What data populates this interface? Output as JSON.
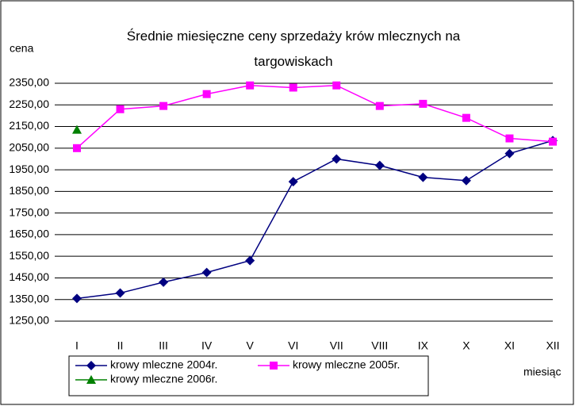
{
  "chart_data": {
    "type": "line",
    "title": "Średnie miesięczne ceny sprzedaży krów mlecznych na targowiskach",
    "y_label": "cena",
    "x_label": "miesiąc",
    "categories": [
      "I",
      "II",
      "III",
      "IV",
      "V",
      "VI",
      "VII",
      "VIII",
      "IX",
      "X",
      "XI",
      "XII"
    ],
    "series": [
      {
        "name": "krowy mleczne 2004r.",
        "color": "#000080",
        "marker": "diamond",
        "values": [
          1355,
          1380,
          1430,
          1475,
          1530,
          1895,
          2000,
          1970,
          1915,
          1900,
          2025,
          2085
        ]
      },
      {
        "name": "krowy mleczne 2005r.",
        "color": "#ff00ff",
        "marker": "square",
        "values": [
          2050,
          2230,
          2245,
          2300,
          2340,
          2330,
          2340,
          2245,
          2255,
          2190,
          2095,
          2080
        ]
      },
      {
        "name": "krowy mleczne 2006r.",
        "color": "#008000",
        "marker": "triangle",
        "values": [
          2135,
          null,
          null,
          null,
          null,
          null,
          null,
          null,
          null,
          null,
          null,
          null
        ]
      }
    ],
    "ylim": [
      1250,
      2350
    ],
    "yticks": [
      {
        "value": 1250,
        "label": "1250,00"
      },
      {
        "value": 1350,
        "label": "1350,00"
      },
      {
        "value": 1450,
        "label": "1450,00"
      },
      {
        "value": 1550,
        "label": "1550,00"
      },
      {
        "value": 1650,
        "label": "1650,00"
      },
      {
        "value": 1750,
        "label": "1750,00"
      },
      {
        "value": 1850,
        "label": "1850,00"
      },
      {
        "value": 1950,
        "label": "1950,00"
      },
      {
        "value": 2050,
        "label": "2050,00"
      },
      {
        "value": 2150,
        "label": "2150,00"
      },
      {
        "value": 2250,
        "label": "2250,00"
      },
      {
        "value": 2350,
        "label": "2350,00"
      }
    ],
    "grid": true
  }
}
